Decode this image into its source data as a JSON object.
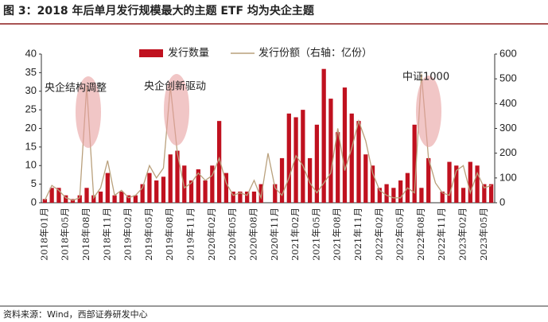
{
  "chart_data": {
    "type": "bar_line",
    "title": "图 3：2018 年后单月发行规模最大的主题 ETF 均为央企主题",
    "source": "资料来源：Wind，西部证券研发中心",
    "categories": [
      "2018年01月",
      null,
      null,
      "2018年05月",
      null,
      null,
      "2018年08月",
      null,
      null,
      "2018年11月",
      null,
      null,
      "2019年02月",
      null,
      null,
      "2019年05月",
      null,
      null,
      "2019年08月",
      null,
      null,
      "2019年11月",
      null,
      null,
      "2020年02月",
      null,
      null,
      "2020年05月",
      null,
      null,
      "2020年08月",
      null,
      null,
      "2020年11月",
      null,
      null,
      "2021年02月",
      null,
      null,
      "2021年05月",
      null,
      null,
      "2021年08月",
      null,
      null,
      "2021年11月",
      null,
      null,
      "2022年02月",
      null,
      null,
      "2022年05月",
      null,
      null,
      "2022年08月",
      null,
      null,
      "2022年11月",
      null,
      null,
      "2023年02月",
      null,
      null,
      "2023年05月",
      null
    ],
    "series": [
      {
        "name": "发行数量",
        "color": "#c0111f",
        "values": [
          1,
          4,
          4,
          2,
          1,
          2,
          4,
          2,
          3,
          8,
          2,
          3,
          2,
          2,
          5,
          8,
          6,
          7,
          13,
          14,
          10,
          6,
          9,
          6,
          10,
          22,
          8,
          3,
          3,
          3,
          3,
          5,
          0,
          5,
          12,
          24,
          23,
          25,
          12,
          21,
          36,
          28,
          19,
          31,
          24,
          22,
          13,
          10,
          4,
          5,
          4,
          6,
          8,
          21,
          4,
          12,
          0,
          3,
          11,
          10,
          4,
          11,
          10,
          5,
          5
        ]
      },
      {
        "name": "发行份额（右轴：亿份）",
        "color": "#b9a07c",
        "axis": "y2",
        "values": [
          10,
          70,
          50,
          20,
          10,
          20,
          470,
          20,
          60,
          170,
          30,
          50,
          20,
          30,
          60,
          150,
          100,
          140,
          470,
          200,
          60,
          80,
          120,
          90,
          110,
          180,
          80,
          30,
          40,
          30,
          90,
          20,
          200,
          60,
          30,
          100,
          190,
          150,
          80,
          40,
          80,
          120,
          300,
          130,
          220,
          330,
          250,
          120,
          50,
          30,
          20,
          20,
          60,
          40,
          520,
          180,
          80,
          40,
          30,
          130,
          150,
          40,
          120,
          60,
          70
        ]
      }
    ],
    "ylim": [
      0,
      40
    ],
    "yticks": [
      0,
      5,
      10,
      15,
      20,
      25,
      30,
      35,
      40
    ],
    "y2lim": [
      0,
      600
    ],
    "y2ticks": [
      0,
      100,
      200,
      300,
      400,
      500,
      600
    ],
    "annotations": [
      "央企结构调整",
      "央企创新驱动",
      "中证1000"
    ]
  }
}
